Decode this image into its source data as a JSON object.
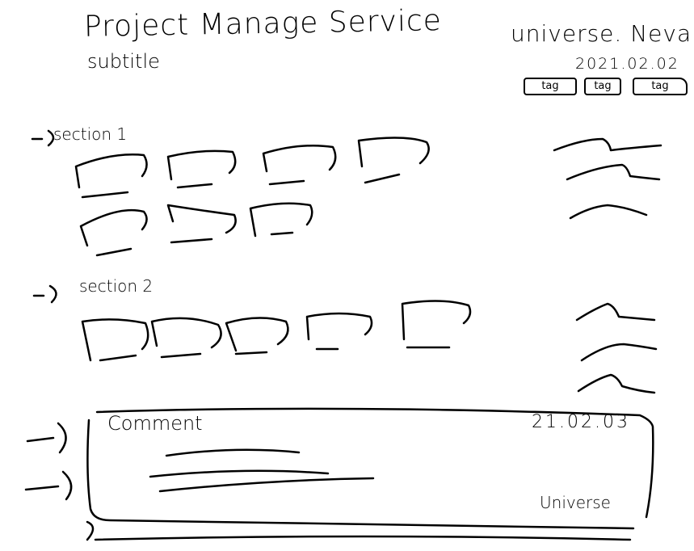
{
  "header": {
    "title": "Project Manage Service",
    "subtitle": "subtitle",
    "brand": "universe. Neva",
    "date": "2021.02.02",
    "tags": [
      "tag",
      "tag",
      "tag"
    ]
  },
  "sections": [
    {
      "label": "section 1",
      "arrow": "-)"
    },
    {
      "label": "section 2",
      "arrow": "-)"
    }
  ],
  "comment": {
    "label": "Comment",
    "date": "21.02.03",
    "author": "Universe"
  }
}
